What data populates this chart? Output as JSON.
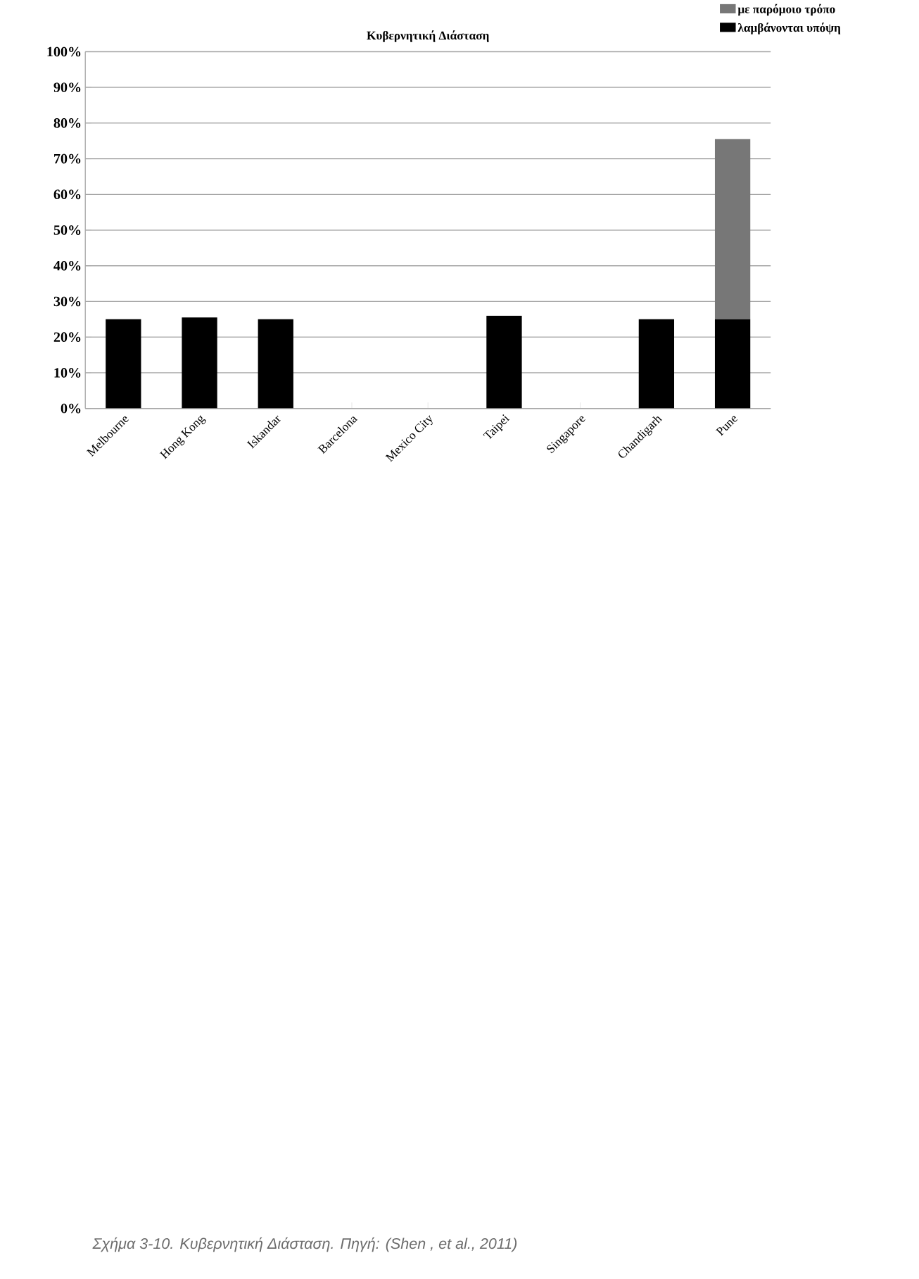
{
  "chart_data": {
    "type": "bar",
    "stacked": true,
    "title": "Κυβερνητική Διάσταση",
    "categories": [
      "Melbourne",
      "Hong Kong",
      "Iskandar",
      "Barcelona",
      "Mexico City",
      "Taipei",
      "Singapore",
      "Chandigarh",
      "Pune"
    ],
    "series": [
      {
        "name": "λαμβάνονται υπόψη",
        "color": "#000000",
        "values": [
          25,
          25.5,
          25,
          0,
          0,
          26,
          0,
          25,
          25
        ]
      },
      {
        "name": "με παρόμοιο τρόπο",
        "color": "#777777",
        "values": [
          null,
          null,
          null,
          null,
          null,
          null,
          null,
          null,
          50.5
        ]
      }
    ],
    "ylim": [
      0,
      100
    ],
    "yticks": [
      {
        "value": 0,
        "label": "0%"
      },
      {
        "value": 10,
        "label": "10%"
      },
      {
        "value": 20,
        "label": "20%"
      },
      {
        "value": 30,
        "label": "30%"
      },
      {
        "value": 40,
        "label": "40%"
      },
      {
        "value": 50,
        "label": "50%"
      },
      {
        "value": 60,
        "label": "60%"
      },
      {
        "value": 70,
        "label": "70%"
      },
      {
        "value": 80,
        "label": "80%"
      },
      {
        "value": 90,
        "label": "90%"
      },
      {
        "value": 100,
        "label": "100%"
      }
    ],
    "grid": "y",
    "legend": "top right",
    "annotations": [
      "Σχήμα 3-10. Κυβερνητική Διάσταση. Πηγή: (Shen , et al., 2011)"
    ]
  }
}
